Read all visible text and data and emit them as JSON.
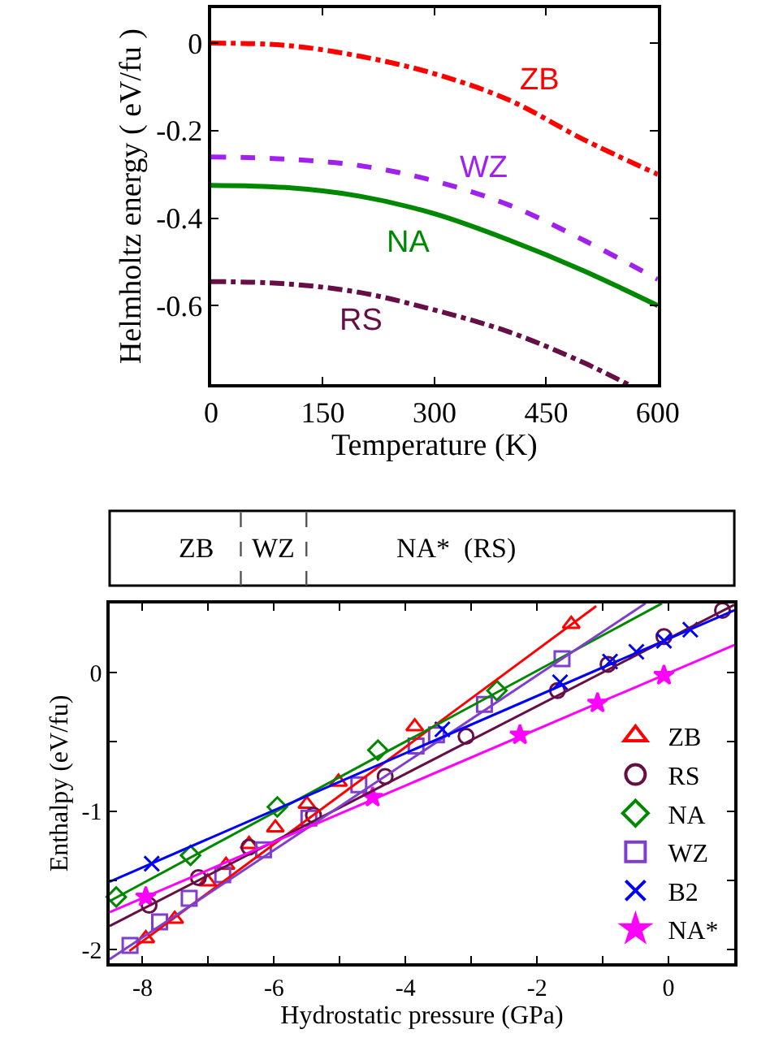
{
  "chart_data": [
    {
      "type": "line",
      "xlabel": "Temperature (K)",
      "ylabel": "Helmholtz energy ( eV/fu )",
      "xlim": [
        0,
        600
      ],
      "xticks": [
        0,
        150,
        300,
        450,
        600
      ],
      "ylim": [
        -0.78,
        0.08
      ],
      "yticks": [
        0,
        -0.2,
        -0.4,
        -0.6
      ],
      "marker": "none",
      "x": [
        0,
        100,
        200,
        300,
        400,
        500,
        600
      ],
      "series": [
        {
          "name": "ZB",
          "color": "#ff0000",
          "line_style": "dashdot",
          "values": [
            0,
            -0.005,
            -0.03,
            -0.07,
            -0.13,
            -0.22,
            -0.3
          ]
        },
        {
          "name": "WZ",
          "color": "#a020f0",
          "line_style": "dashed",
          "values": [
            -0.26,
            -0.265,
            -0.28,
            -0.315,
            -0.37,
            -0.45,
            -0.54
          ]
        },
        {
          "name": "NA",
          "color": "#008800",
          "line_style": "solid",
          "values": [
            -0.325,
            -0.33,
            -0.35,
            -0.39,
            -0.45,
            -0.52,
            -0.6
          ]
        },
        {
          "name": "RS",
          "color": "#660f46",
          "line_style": "dashdot",
          "x": [
            0,
            100,
            200,
            300,
            400,
            500,
            560
          ],
          "values": [
            -0.545,
            -0.55,
            -0.57,
            -0.61,
            -0.66,
            -0.73,
            -0.78
          ]
        }
      ]
    },
    {
      "type": "other",
      "annotations": [
        "ZB",
        "WZ",
        "NA*  (RS)"
      ]
    },
    {
      "type": "scatter",
      "xlabel": "Hydrostatic pressure (GPa)",
      "ylabel": "Enthalpy (eV/fu)",
      "xlim": [
        -8.5,
        1
      ],
      "xticks": [
        -8,
        {
          "value": -7,
          "label": null
        },
        -6,
        {
          "value": -5,
          "label": null
        },
        -4,
        {
          "value": -3,
          "label": null
        },
        -2,
        {
          "value": -1,
          "label": null
        },
        0
      ],
      "ylim": [
        -2.1,
        0.5
      ],
      "yticks": [
        0,
        {
          "value": -0.5,
          "label": null
        },
        -1,
        {
          "value": -1.5,
          "label": null
        },
        -2
      ],
      "legend": "bottom right",
      "series": [
        {
          "name": "ZB",
          "color": "#ff0000",
          "marker": "triangle",
          "x": [
            -7.95,
            -7.51,
            -7.01,
            -6.73,
            -6.38,
            -5.98,
            -5.5,
            -5.02,
            -3.86,
            -1.48
          ],
          "values": [
            -1.92,
            -1.78,
            -1.51,
            -1.39,
            -1.24,
            -1.12,
            -0.95,
            -0.79,
            -0.39,
            0.35
          ]
        },
        {
          "name": "RS",
          "color": "#660f46",
          "marker": "circle",
          "x": [
            -7.9,
            -7.15,
            -6.38,
            -5.4,
            -4.31,
            -3.08,
            -1.69,
            -0.92,
            -0.07,
            0.82
          ],
          "values": [
            -1.68,
            -1.48,
            -1.26,
            -1.03,
            -0.75,
            -0.46,
            -0.13,
            0.06,
            0.26,
            0.45
          ]
        },
        {
          "name": "NA",
          "color": "#008800",
          "marker": "diamond",
          "x": [
            -8.4,
            -7.27,
            -5.95,
            -4.42,
            -2.61
          ],
          "values": [
            -1.62,
            -1.32,
            -0.97,
            -0.56,
            -0.13
          ]
        },
        {
          "name": "WZ",
          "color": "#7f3fcc",
          "marker": "square",
          "x": [
            -8.19,
            -7.74,
            -7.29,
            -6.78,
            -6.16,
            -5.47,
            -4.71,
            -3.84,
            -3.53,
            -2.8,
            -1.62
          ],
          "values": [
            -1.97,
            -1.8,
            -1.63,
            -1.46,
            -1.28,
            -1.05,
            -0.81,
            -0.53,
            -0.45,
            -0.23,
            0.1
          ]
        },
        {
          "name": "B2",
          "color": "#0000ff",
          "marker": "cross",
          "x": [
            -7.86,
            -3.44,
            -1.65,
            -0.89,
            -0.49,
            -0.07,
            0.33
          ],
          "values": [
            -1.38,
            -0.41,
            -0.07,
            0.08,
            0.15,
            0.23,
            0.31
          ]
        },
        {
          "name": "NA*",
          "color": "#ff00ff",
          "marker": "star",
          "x": [
            -7.95,
            -4.5,
            -2.26,
            -1.08,
            -0.07
          ],
          "values": [
            -1.62,
            -0.9,
            -0.45,
            -0.22,
            -0.02
          ]
        },
        {
          "type": "line",
          "color": "#ff0000",
          "x": [
            -8.2,
            -1.1
          ],
          "values": [
            -2.01,
            0.48
          ]
        },
        {
          "type": "line",
          "color": "#660f46",
          "x": [
            -8.5,
            1
          ],
          "values": [
            -1.83,
            0.49
          ]
        },
        {
          "type": "line",
          "color": "#008800",
          "x": [
            -8.5,
            -0.1
          ],
          "values": [
            -1.65,
            0.5
          ]
        },
        {
          "type": "line",
          "color": "#7f3fcc",
          "x": [
            -8.5,
            -0.35
          ],
          "values": [
            -2.07,
            0.5
          ]
        },
        {
          "type": "line",
          "color": "#0000ff",
          "x": [
            -8.5,
            1
          ],
          "values": [
            -1.51,
            0.45
          ]
        },
        {
          "type": "line",
          "color": "#ff00ff",
          "x": [
            -8.5,
            1
          ],
          "values": [
            -1.73,
            0.2
          ]
        }
      ]
    }
  ]
}
